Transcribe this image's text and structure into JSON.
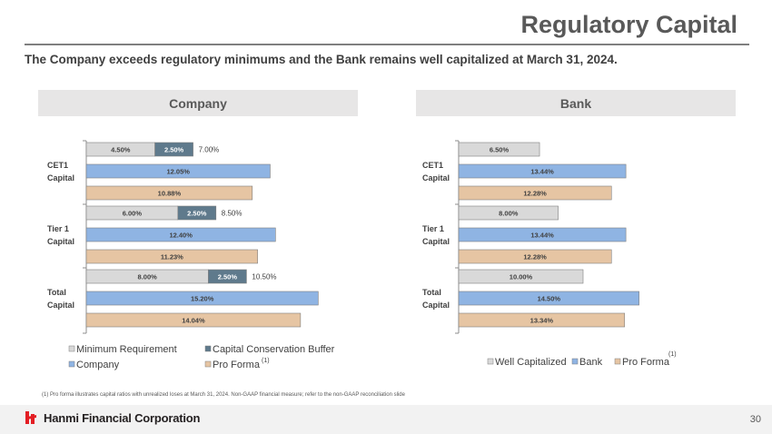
{
  "header": {
    "title": "Regulatory Capital",
    "subtitle": "The Company exceeds regulatory minimums and the Bank remains well capitalized at March 31, 2024."
  },
  "panels": {
    "company": "Company",
    "bank": "Bank"
  },
  "colors": {
    "gray": "#d9d9d9",
    "slate": "#5f7a8c",
    "blue": "#8fb4e3",
    "tan": "#e6c5a3"
  },
  "chart_data": [
    {
      "type": "bar",
      "orientation": "horizontal",
      "title": "Company",
      "categories": [
        {
          "line1": "CET1",
          "line2": "Capital"
        },
        {
          "line1": "Tier 1",
          "line2": "Capital"
        },
        {
          "line1": "Total",
          "line2": "Capital"
        }
      ],
      "series": [
        {
          "name": "Minimum Requirement",
          "values": [
            4.5,
            6.0,
            8.0
          ],
          "labels": [
            "4.50%",
            "6.00%",
            "8.00%"
          ],
          "color": "#d9d9d9",
          "stack": "min"
        },
        {
          "name": "Capital Conservation Buffer",
          "values": [
            2.5,
            2.5,
            2.5
          ],
          "labels": [
            "2.50%",
            "2.50%",
            "2.50%"
          ],
          "color": "#5f7a8c",
          "stack": "min"
        },
        {
          "name": "Company",
          "values": [
            12.05,
            12.4,
            15.2
          ],
          "labels": [
            "12.05%",
            "12.40%",
            "15.20%"
          ],
          "color": "#8fb4e3"
        },
        {
          "name": "Pro Forma",
          "values": [
            10.88,
            11.23,
            14.04
          ],
          "labels": [
            "10.88%",
            "11.23%",
            "14.04%"
          ],
          "color": "#e6c5a3",
          "sup": "(1)"
        }
      ],
      "stack_totals": [
        "7.00%",
        "8.50%",
        "10.50%"
      ],
      "xlim": [
        0,
        16
      ]
    },
    {
      "type": "bar",
      "orientation": "horizontal",
      "title": "Bank",
      "categories": [
        {
          "line1": "CET1",
          "line2": "Capital"
        },
        {
          "line1": "Tier 1",
          "line2": "Capital"
        },
        {
          "line1": "Total",
          "line2": "Capital"
        }
      ],
      "series": [
        {
          "name": "Well Capitalized",
          "values": [
            6.5,
            8.0,
            10.0
          ],
          "labels": [
            "6.50%",
            "8.00%",
            "10.00%"
          ],
          "color": "#d9d9d9"
        },
        {
          "name": "Bank",
          "values": [
            13.44,
            13.44,
            14.5
          ],
          "labels": [
            "13.44%",
            "13.44%",
            "14.50%"
          ],
          "color": "#8fb4e3"
        },
        {
          "name": "Pro Forma",
          "values": [
            12.28,
            12.28,
            13.34
          ],
          "labels": [
            "12.28%",
            "12.28%",
            "13.34%"
          ],
          "color": "#e6c5a3",
          "sup": "(1)"
        }
      ],
      "xlim": [
        0,
        15
      ]
    }
  ],
  "footnote": "(1)    Pro forma illustrates capital ratios with unrealized loses at March 31, 2024. Non-GAAP financial measure; refer to the non-GAAP reconciliation slide",
  "footer": {
    "logo_text": "Hanmi Financial Corporation",
    "page_number": "30"
  }
}
